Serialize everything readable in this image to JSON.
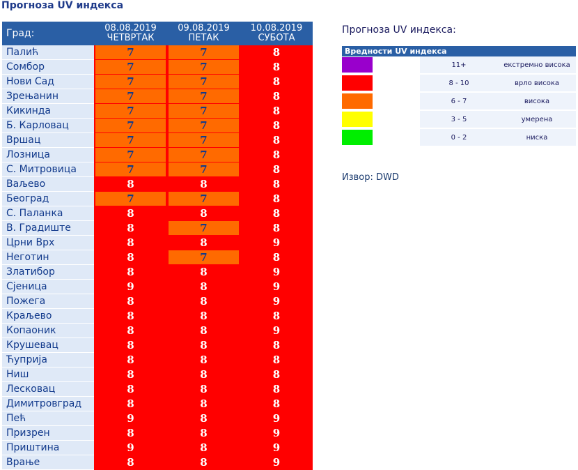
{
  "page_title": "Прогноза UV индекса",
  "table": {
    "city_header": "Град:",
    "days": [
      {
        "date": "08.08.2019",
        "weekday": "ЧЕТВРТАК"
      },
      {
        "date": "09.08.2019",
        "weekday": "ПЕТАК"
      },
      {
        "date": "10.08.2019",
        "weekday": "СУБОТА"
      }
    ],
    "rows": [
      {
        "city": "Палић",
        "v": [
          "7",
          "7",
          "8"
        ]
      },
      {
        "city": "Сомбор",
        "v": [
          "7",
          "7",
          "8"
        ]
      },
      {
        "city": "Нови Сад",
        "v": [
          "7",
          "7",
          "8"
        ]
      },
      {
        "city": "Зрењанин",
        "v": [
          "7",
          "7",
          "8"
        ]
      },
      {
        "city": "Кикинда",
        "v": [
          "7",
          "7",
          "8"
        ]
      },
      {
        "city": "Б. Карловац",
        "v": [
          "7",
          "7",
          "8"
        ]
      },
      {
        "city": "Вршац",
        "v": [
          "7",
          "7",
          "8"
        ]
      },
      {
        "city": "Лозница",
        "v": [
          "7",
          "7",
          "8"
        ]
      },
      {
        "city": "С. Митровица",
        "v": [
          "7",
          "7",
          "8"
        ]
      },
      {
        "city": "Ваљево",
        "v": [
          "8",
          "8",
          "8"
        ]
      },
      {
        "city": "Београд",
        "v": [
          "7",
          "7",
          "8"
        ]
      },
      {
        "city": "С. Паланка",
        "v": [
          "8",
          "8",
          "8"
        ]
      },
      {
        "city": "В. Градиште",
        "v": [
          "8",
          "7",
          "8"
        ]
      },
      {
        "city": "Црни Врх",
        "v": [
          "8",
          "8",
          "9"
        ]
      },
      {
        "city": "Неготин",
        "v": [
          "8",
          "7",
          "8"
        ]
      },
      {
        "city": "Златибор",
        "v": [
          "8",
          "8",
          "9"
        ]
      },
      {
        "city": "Сјеница",
        "v": [
          "9",
          "8",
          "9"
        ]
      },
      {
        "city": "Пожега",
        "v": [
          "8",
          "8",
          "9"
        ]
      },
      {
        "city": "Краљево",
        "v": [
          "8",
          "8",
          "8"
        ]
      },
      {
        "city": "Копаоник",
        "v": [
          "8",
          "8",
          "9"
        ]
      },
      {
        "city": "Крушевац",
        "v": [
          "8",
          "8",
          "8"
        ]
      },
      {
        "city": "Ћуприја",
        "v": [
          "8",
          "8",
          "8"
        ]
      },
      {
        "city": "Ниш",
        "v": [
          "8",
          "8",
          "8"
        ]
      },
      {
        "city": "Лесковац",
        "v": [
          "8",
          "8",
          "8"
        ]
      },
      {
        "city": "Димитровград",
        "v": [
          "8",
          "8",
          "8"
        ]
      },
      {
        "city": "Пећ",
        "v": [
          "9",
          "8",
          "9"
        ]
      },
      {
        "city": "Призрен",
        "v": [
          "8",
          "8",
          "9"
        ]
      },
      {
        "city": "Приштина",
        "v": [
          "9",
          "8",
          "9"
        ]
      },
      {
        "city": "Врање",
        "v": [
          "8",
          "8",
          "9"
        ]
      }
    ]
  },
  "legend": {
    "title": "Прогноза UV индекса:",
    "header": "Вредности UV индекса",
    "items": [
      {
        "color": "#9900cc",
        "range": "11+",
        "label": "екстремно висока"
      },
      {
        "color": "#ff0000",
        "range": "8 - 10",
        "label": "врло висока"
      },
      {
        "color": "#ff6a00",
        "range": "6 - 7",
        "label": "висока"
      },
      {
        "color": "#ffff00",
        "range": "3 - 5",
        "label": "умерена"
      },
      {
        "color": "#00ee00",
        "range": "0 - 2",
        "label": "ниска"
      }
    ]
  },
  "source": "Извор: DWD",
  "colors": {
    "header": "#2a5fa5",
    "city_bg": "#dfe9f7",
    "very_high": "#ff0000",
    "high": "#ff6a00"
  }
}
